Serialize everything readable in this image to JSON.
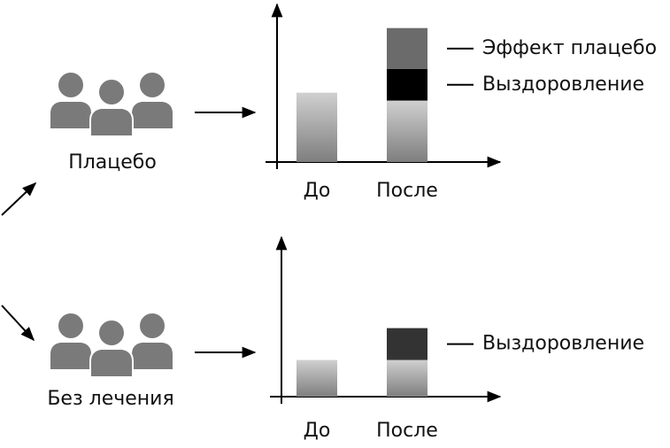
{
  "groups": [
    {
      "label": "Плацебо"
    },
    {
      "label": "Без лечения"
    }
  ],
  "chart_data": [
    {
      "type": "stacked-bar",
      "categories": [
        "До",
        "После"
      ],
      "ylim": [
        0,
        100
      ],
      "series": [
        {
          "name": null,
          "color": "#9a9a9a",
          "values": [
            44,
            39
          ]
        },
        {
          "name": "Выздоровление",
          "color": "#000000",
          "values": [
            null,
            20
          ]
        },
        {
          "name": "Эффект плацебо",
          "color": "#6b6b6b",
          "values": [
            null,
            26
          ]
        }
      ]
    },
    {
      "type": "stacked-bar",
      "categories": [
        "До",
        "После"
      ],
      "ylim": [
        0,
        100
      ],
      "series": [
        {
          "name": null,
          "color": "#9a9a9a",
          "values": [
            23,
            23
          ]
        },
        {
          "name": "Выздоровление",
          "color": "#333333",
          "values": [
            null,
            20
          ]
        }
      ]
    }
  ]
}
